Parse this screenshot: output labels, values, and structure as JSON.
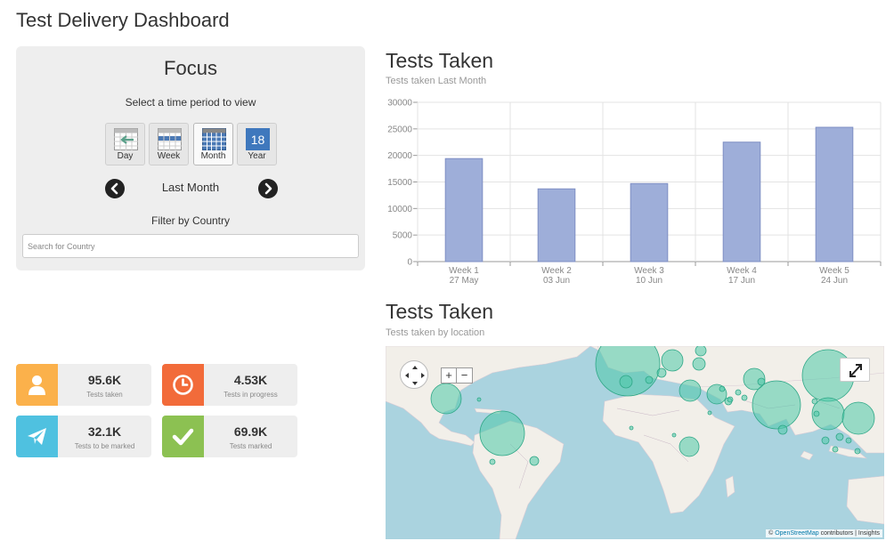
{
  "page": {
    "title": "Test Delivery Dashboard"
  },
  "focus": {
    "title": "Focus",
    "subtitle": "Select a time period to view",
    "periods": [
      {
        "label": "Day",
        "icon": "calendar-day-icon"
      },
      {
        "label": "Week",
        "icon": "calendar-week-icon"
      },
      {
        "label": "Month",
        "icon": "calendar-month-icon",
        "active": true
      },
      {
        "label": "Year",
        "icon": "calendar-year-icon",
        "badge": "18"
      }
    ],
    "current_period": "Last Month",
    "filter_label": "Filter by Country",
    "search_placeholder": "Search for Country"
  },
  "stats": [
    {
      "value": "95.6K",
      "label": "Tests taken",
      "color": "#fbb14b",
      "icon": "user-icon"
    },
    {
      "value": "4.53K",
      "label": "Tests in progress",
      "color": "#f26b3a",
      "icon": "clock-icon"
    },
    {
      "value": "32.1K",
      "label": "Tests to be marked",
      "color": "#4fc1e0",
      "icon": "paper-plane-icon"
    },
    {
      "value": "69.9K",
      "label": "Tests marked",
      "color": "#8cc152",
      "icon": "checkmark-icon"
    }
  ],
  "chart_section": {
    "title": "Tests Taken",
    "subtitle": "Tests taken Last Month"
  },
  "map_section": {
    "title": "Tests Taken",
    "subtitle": "Tests taken by location",
    "attribution_prefix": "©",
    "attribution_link": "OpenStreetMap",
    "attribution_suffix": "contributors | Insights",
    "zoom_in": "+",
    "zoom_out": "−"
  },
  "colors": {
    "bar_fill": "#9eaed9",
    "bar_stroke": "#7f8fc4",
    "bubble": "#4dc9a8",
    "water": "#aad3df",
    "land": "#f2efe9"
  },
  "chart_data": {
    "type": "bar",
    "categories": [
      "Week 1",
      "Week 2",
      "Week 3",
      "Week 4",
      "Week 5"
    ],
    "category_dates": [
      "27 May",
      "03 Jun",
      "10 Jun",
      "17 Jun",
      "24 Jun"
    ],
    "values": [
      19400,
      13700,
      14700,
      22500,
      25300
    ],
    "ylim": [
      0,
      30000
    ],
    "yticks": [
      0,
      5000,
      10000,
      15000,
      20000,
      25000,
      30000
    ],
    "grid": true,
    "title": "Tests Taken",
    "subtitle": "Tests taken Last Month"
  }
}
